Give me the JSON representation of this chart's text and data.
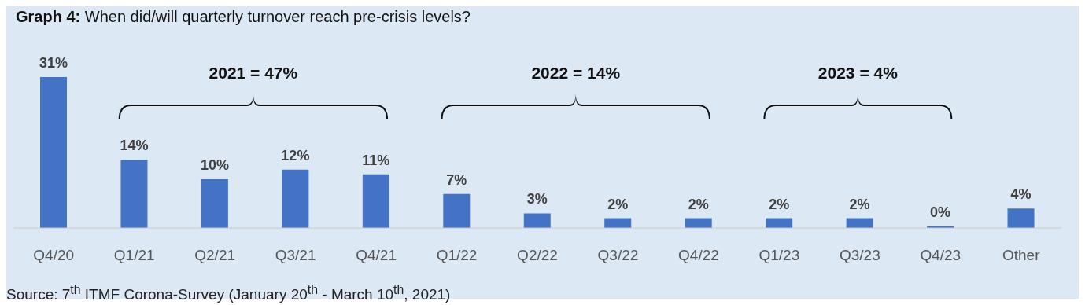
{
  "chart_data": {
    "type": "bar",
    "title": "Graph 4: When did/will quarterly turnover reach pre-crisis levels?",
    "categories": [
      "Q4/20",
      "Q1/21",
      "Q2/21",
      "Q3/21",
      "Q4/21",
      "Q1/22",
      "Q2/22",
      "Q3/22",
      "Q4/22",
      "Q1/23",
      "Q3/23",
      "Q4/23",
      "Other"
    ],
    "values": [
      31,
      14,
      10,
      12,
      11,
      7,
      3,
      2,
      2,
      2,
      2,
      0,
      4
    ],
    "value_labels": [
      "31%",
      "14%",
      "10%",
      "12%",
      "11%",
      "7%",
      "3%",
      "2%",
      "2%",
      "2%",
      "2%",
      "0%",
      "4%"
    ],
    "color": "#4472c4",
    "annotations": [
      "2021 = 47%",
      "2022 = 14%",
      "2023 = 4%",
      "Source: 7$^{th}$ ITMF Corona-Survey (January 20$^{th}$ - March 10$^{th}$, 2021)"
    ],
    "grid": false,
    "legend": false
  }
}
